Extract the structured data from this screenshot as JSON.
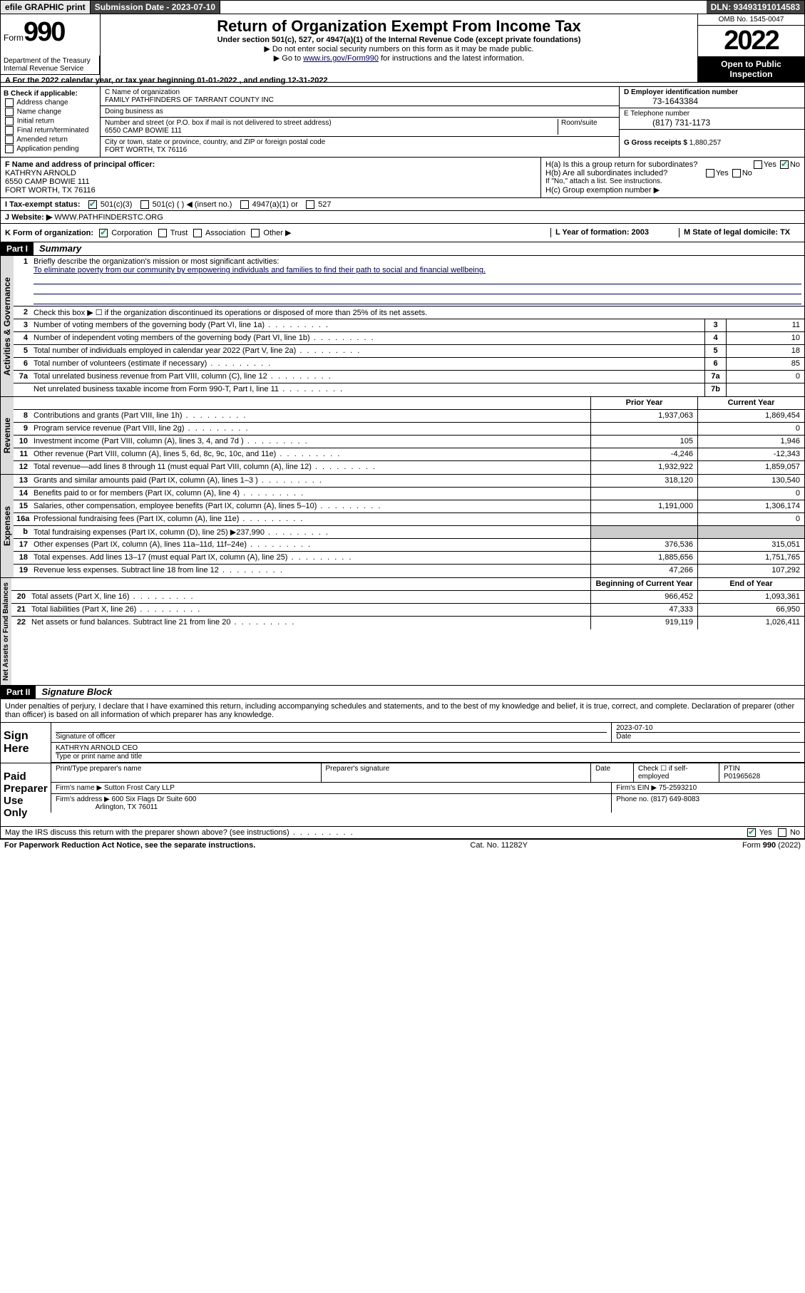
{
  "topbar": {
    "efile": "efile GRAPHIC print",
    "submission": "Submission Date - 2023-07-10",
    "dln": "DLN: 93493191014583"
  },
  "header": {
    "form": "Form",
    "formnum": "990",
    "title": "Return of Organization Exempt From Income Tax",
    "subtitle": "Under section 501(c), 527, or 4947(a)(1) of the Internal Revenue Code (except private foundations)",
    "note1": "▶ Do not enter social security numbers on this form as it may be made public.",
    "note2_pre": "▶ Go to ",
    "note2_link": "www.irs.gov/Form990",
    "note2_post": " for instructions and the latest information.",
    "omb": "OMB No. 1545-0047",
    "year": "2022",
    "inspect": "Open to Public Inspection",
    "dept": "Department of the Treasury\nInternal Revenue Service"
  },
  "rowA": "A For the 2022 calendar year, or tax year beginning 01-01-2022   , and ending 12-31-2022",
  "colB": {
    "hdr": "B Check if applicable:",
    "items": [
      "Address change",
      "Name change",
      "Initial return",
      "Final return/terminated",
      "Amended return",
      "Application pending"
    ]
  },
  "colC": {
    "c_label": "C Name of organization",
    "c_name": "FAMILY PATHFINDERS OF TARRANT COUNTY INC",
    "dba_label": "Doing business as",
    "addr_label": "Number and street (or P.O. box if mail is not delivered to street address)",
    "room_label": "Room/suite",
    "addr": "6550 CAMP BOWIE 111",
    "city_label": "City or town, state or province, country, and ZIP or foreign postal code",
    "city": "FORT WORTH, TX  76116"
  },
  "colDE": {
    "d_label": "D Employer identification number",
    "d_val": "73-1643384",
    "e_label": "E Telephone number",
    "e_val": "(817) 731-1173",
    "g_label": "G Gross receipts $",
    "g_val": "1,880,257"
  },
  "rowF": {
    "f_label": "F Name and address of principal officer:",
    "f_name": "KATHRYN ARNOLD",
    "f_addr1": "6550 CAMP BOWIE 111",
    "f_addr2": "FORT WORTH, TX  76116",
    "ha": "H(a)  Is this a group return for subordinates?",
    "hb": "H(b)  Are all subordinates included?",
    "hb_note": "If \"No,\" attach a list. See instructions.",
    "hc": "H(c)  Group exemption number ▶",
    "yes": "Yes",
    "no": "No"
  },
  "rowI": {
    "label": "I   Tax-exempt status:",
    "opts": [
      "501(c)(3)",
      "501(c) (  ) ◀ (insert no.)",
      "4947(a)(1) or",
      "527"
    ]
  },
  "rowJ": {
    "label": "J   Website: ▶",
    "val": "WWW.PATHFINDERSTC.ORG"
  },
  "rowK": {
    "k_label": "K Form of organization:",
    "opts": [
      "Corporation",
      "Trust",
      "Association",
      "Other ▶"
    ],
    "l_label": "L Year of formation: 2003",
    "m_label": "M State of legal domicile: TX"
  },
  "part1": {
    "hdr": "Part I",
    "title": "Summary",
    "l1_label": "Briefly describe the organization's mission or most significant activities:",
    "l1_val": "To eliminate poverty from our community by empowering individuals and families to find their path to social and financial wellbeing.",
    "l2": "Check this box ▶ ☐  if the organization discontinued its operations or disposed of more than 25% of its net assets.",
    "sections": {
      "gov": "Activities & Governance",
      "rev": "Revenue",
      "exp": "Expenses",
      "net": "Net Assets or Fund Balances"
    },
    "lines_single": [
      {
        "n": "3",
        "t": "Number of voting members of the governing body (Part VI, line 1a)",
        "box": "3",
        "v": "11"
      },
      {
        "n": "4",
        "t": "Number of independent voting members of the governing body (Part VI, line 1b)",
        "box": "4",
        "v": "10"
      },
      {
        "n": "5",
        "t": "Total number of individuals employed in calendar year 2022 (Part V, line 2a)",
        "box": "5",
        "v": "18"
      },
      {
        "n": "6",
        "t": "Total number of volunteers (estimate if necessary)",
        "box": "6",
        "v": "85"
      },
      {
        "n": "7a",
        "t": "Total unrelated business revenue from Part VIII, column (C), line 12",
        "box": "7a",
        "v": "0"
      },
      {
        "n": "",
        "t": "Net unrelated business taxable income from Form 990-T, Part I, line 11",
        "box": "7b",
        "v": ""
      }
    ],
    "hdr_prior": "Prior Year",
    "hdr_curr": "Current Year",
    "lines_rev": [
      {
        "n": "8",
        "t": "Contributions and grants (Part VIII, line 1h)",
        "p": "1,937,063",
        "c": "1,869,454"
      },
      {
        "n": "9",
        "t": "Program service revenue (Part VIII, line 2g)",
        "p": "",
        "c": "0"
      },
      {
        "n": "10",
        "t": "Investment income (Part VIII, column (A), lines 3, 4, and 7d )",
        "p": "105",
        "c": "1,946"
      },
      {
        "n": "11",
        "t": "Other revenue (Part VIII, column (A), lines 5, 6d, 8c, 9c, 10c, and 11e)",
        "p": "-4,246",
        "c": "-12,343"
      },
      {
        "n": "12",
        "t": "Total revenue—add lines 8 through 11 (must equal Part VIII, column (A), line 12)",
        "p": "1,932,922",
        "c": "1,859,057"
      }
    ],
    "lines_exp": [
      {
        "n": "13",
        "t": "Grants and similar amounts paid (Part IX, column (A), lines 1–3 )",
        "p": "318,120",
        "c": "130,540"
      },
      {
        "n": "14",
        "t": "Benefits paid to or for members (Part IX, column (A), line 4)",
        "p": "",
        "c": "0"
      },
      {
        "n": "15",
        "t": "Salaries, other compensation, employee benefits (Part IX, column (A), lines 5–10)",
        "p": "1,191,000",
        "c": "1,306,174"
      },
      {
        "n": "16a",
        "t": "Professional fundraising fees (Part IX, column (A), line 11e)",
        "p": "",
        "c": "0"
      },
      {
        "n": "b",
        "t": "Total fundraising expenses (Part IX, column (D), line 25) ▶237,990",
        "p": "—shade—",
        "c": "—shade—"
      },
      {
        "n": "17",
        "t": "Other expenses (Part IX, column (A), lines 11a–11d, 11f–24e)",
        "p": "376,536",
        "c": "315,051"
      },
      {
        "n": "18",
        "t": "Total expenses. Add lines 13–17 (must equal Part IX, column (A), line 25)",
        "p": "1,885,656",
        "c": "1,751,765"
      },
      {
        "n": "19",
        "t": "Revenue less expenses. Subtract line 18 from line 12",
        "p": "47,266",
        "c": "107,292"
      }
    ],
    "hdr_beg": "Beginning of Current Year",
    "hdr_end": "End of Year",
    "lines_net": [
      {
        "n": "20",
        "t": "Total assets (Part X, line 16)",
        "p": "966,452",
        "c": "1,093,361"
      },
      {
        "n": "21",
        "t": "Total liabilities (Part X, line 26)",
        "p": "47,333",
        "c": "66,950"
      },
      {
        "n": "22",
        "t": "Net assets or fund balances. Subtract line 21 from line 20",
        "p": "919,119",
        "c": "1,026,411"
      }
    ]
  },
  "part2": {
    "hdr": "Part II",
    "title": "Signature Block",
    "decl": "Under penalties of perjury, I declare that I have examined this return, including accompanying schedules and statements, and to the best of my knowledge and belief, it is true, correct, and complete. Declaration of preparer (other than officer) is based on all information of which preparer has any knowledge.",
    "sign_here": "Sign Here",
    "sig_officer": "Signature of officer",
    "date_label": "Date",
    "date_val": "2023-07-10",
    "name_title": "KATHRYN ARNOLD CEO",
    "name_title_label": "Type or print name and title",
    "paid": "Paid Preparer Use Only",
    "prep_name_label": "Print/Type preparer's name",
    "prep_sig_label": "Preparer's signature",
    "check_self": "Check ☐ if self-employed",
    "ptin_label": "PTIN",
    "ptin": "P01965628",
    "firm_name_label": "Firm's name   ▶",
    "firm_name": "Sutton Frost Cary LLP",
    "firm_ein_label": "Firm's EIN ▶",
    "firm_ein": "75-2593210",
    "firm_addr_label": "Firm's address ▶",
    "firm_addr1": "600 Six Flags Dr Suite 600",
    "firm_addr2": "Arlington, TX  76011",
    "phone_label": "Phone no.",
    "phone": "(817) 649-8083",
    "may_irs": "May the IRS discuss this return with the preparer shown above? (see instructions)"
  },
  "footer": {
    "left": "For Paperwork Reduction Act Notice, see the separate instructions.",
    "mid": "Cat. No. 11282Y",
    "right": "Form 990 (2022)"
  }
}
